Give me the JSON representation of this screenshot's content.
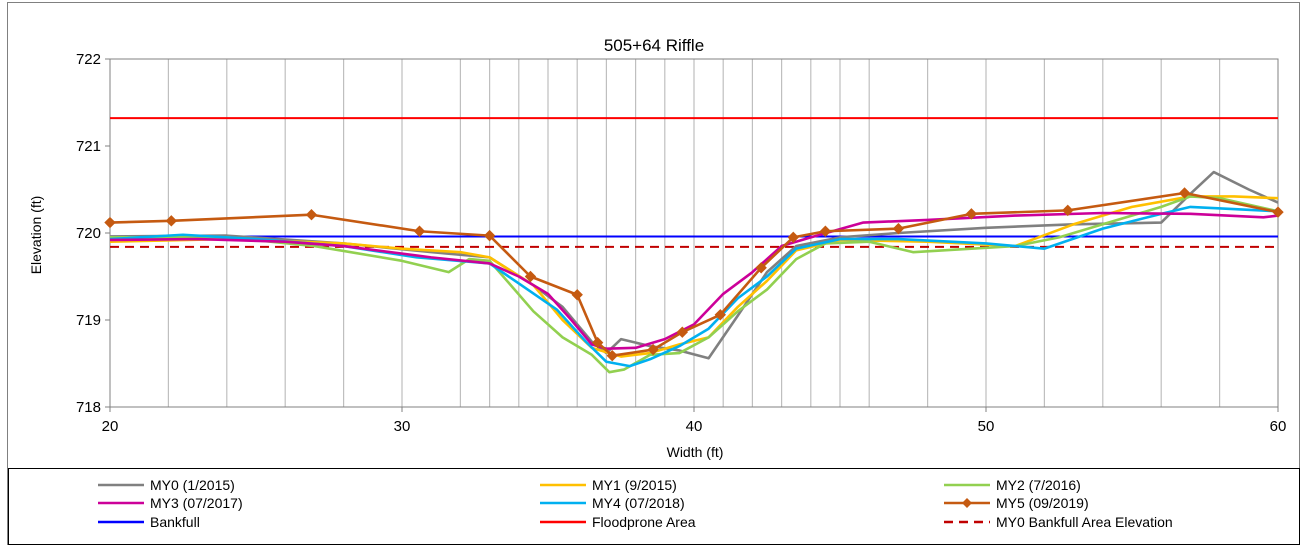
{
  "chart_data": {
    "type": "line",
    "title": "505+64 Riffle",
    "xlabel": "Width (ft)",
    "ylabel": "Elevation (ft)",
    "xlim": [
      20,
      60
    ],
    "ylim": [
      718,
      722
    ],
    "x_ticks": [
      20,
      30,
      40,
      50,
      60
    ],
    "y_ticks": [
      718,
      719,
      720,
      721,
      722
    ],
    "grid": "vertical lines at survey stations",
    "legend_position": "bottom",
    "series": [
      {
        "name": "MY0 (1/2015)",
        "color": "#808080",
        "marker": "none",
        "points": [
          [
            20,
            719.96
          ],
          [
            24,
            719.97
          ],
          [
            28,
            719.88
          ],
          [
            31,
            719.78
          ],
          [
            33,
            719.72
          ],
          [
            34.5,
            719.4
          ],
          [
            35.5,
            719.15
          ],
          [
            36.5,
            718.75
          ],
          [
            37,
            718.62
          ],
          [
            37.5,
            718.78
          ],
          [
            38.5,
            718.7
          ],
          [
            39.5,
            718.65
          ],
          [
            40.5,
            718.56
          ],
          [
            41.5,
            719.05
          ],
          [
            42.5,
            719.55
          ],
          [
            43.5,
            719.85
          ],
          [
            45,
            719.95
          ],
          [
            47,
            720.0
          ],
          [
            50,
            720.06
          ],
          [
            53,
            720.1
          ],
          [
            56,
            720.12
          ],
          [
            57,
            720.45
          ],
          [
            57.8,
            720.7
          ],
          [
            59,
            720.5
          ],
          [
            60,
            720.35
          ]
        ]
      },
      {
        "name": "MY1 (9/2015)",
        "color": "#FFC000",
        "marker": "none",
        "points": [
          [
            20,
            719.9
          ],
          [
            24,
            719.93
          ],
          [
            28,
            719.88
          ],
          [
            30,
            719.82
          ],
          [
            32,
            719.78
          ],
          [
            33,
            719.72
          ],
          [
            34.5,
            719.4
          ],
          [
            35.5,
            719.0
          ],
          [
            36.5,
            718.68
          ],
          [
            37.5,
            718.58
          ],
          [
            38.5,
            718.62
          ],
          [
            39.5,
            718.72
          ],
          [
            40.5,
            718.8
          ],
          [
            41.5,
            719.15
          ],
          [
            42.5,
            719.45
          ],
          [
            43.5,
            719.8
          ],
          [
            45,
            719.92
          ],
          [
            48,
            719.9
          ],
          [
            51,
            719.85
          ],
          [
            53,
            720.1
          ],
          [
            55,
            720.3
          ],
          [
            57,
            720.42
          ],
          [
            58.5,
            720.42
          ],
          [
            60,
            720.4
          ]
        ]
      },
      {
        "name": "MY2 (7/2016)",
        "color": "#92D050",
        "marker": "none",
        "points": [
          [
            20,
            719.95
          ],
          [
            24,
            719.95
          ],
          [
            27,
            719.85
          ],
          [
            30,
            719.68
          ],
          [
            31.6,
            719.55
          ],
          [
            32.3,
            719.7
          ],
          [
            33,
            719.68
          ],
          [
            34.5,
            719.1
          ],
          [
            35.5,
            718.8
          ],
          [
            36.5,
            718.6
          ],
          [
            37.1,
            718.4
          ],
          [
            37.6,
            718.43
          ],
          [
            38.5,
            718.6
          ],
          [
            39.5,
            718.62
          ],
          [
            40.5,
            718.8
          ],
          [
            41.5,
            719.1
          ],
          [
            42.5,
            719.35
          ],
          [
            43.5,
            719.7
          ],
          [
            44.5,
            719.88
          ],
          [
            46,
            719.9
          ],
          [
            47.5,
            719.78
          ],
          [
            49.5,
            719.82
          ],
          [
            51,
            719.85
          ],
          [
            52.5,
            719.95
          ],
          [
            54,
            720.1
          ],
          [
            56,
            720.3
          ],
          [
            57,
            720.42
          ],
          [
            58,
            720.4
          ],
          [
            60,
            720.25
          ]
        ]
      },
      {
        "name": "MY3 (07/2017)",
        "color": "#CC0099",
        "marker": "none",
        "points": [
          [
            20,
            719.92
          ],
          [
            23,
            719.93
          ],
          [
            26,
            719.9
          ],
          [
            28,
            719.85
          ],
          [
            31,
            719.72
          ],
          [
            33,
            719.65
          ],
          [
            34,
            719.5
          ],
          [
            35,
            719.3
          ],
          [
            35.8,
            719.0
          ],
          [
            36.5,
            718.72
          ],
          [
            37,
            718.67
          ],
          [
            38,
            718.68
          ],
          [
            39,
            718.78
          ],
          [
            40,
            718.95
          ],
          [
            41,
            719.3
          ],
          [
            42,
            719.55
          ],
          [
            43,
            719.85
          ],
          [
            44,
            719.95
          ],
          [
            45.8,
            720.12
          ],
          [
            48,
            720.15
          ],
          [
            51,
            720.2
          ],
          [
            54,
            720.23
          ],
          [
            57,
            720.22
          ],
          [
            59.5,
            720.18
          ],
          [
            60,
            720.2
          ]
        ]
      },
      {
        "name": "MY4 (07/2018)",
        "color": "#00B0F0",
        "marker": "none",
        "points": [
          [
            20,
            719.93
          ],
          [
            22.5,
            719.98
          ],
          [
            25,
            719.93
          ],
          [
            28,
            719.85
          ],
          [
            30.5,
            719.72
          ],
          [
            33,
            719.65
          ],
          [
            34,
            719.42
          ],
          [
            35.3,
            719.12
          ],
          [
            36.3,
            718.75
          ],
          [
            37,
            718.52
          ],
          [
            37.8,
            718.47
          ],
          [
            38.5,
            718.55
          ],
          [
            39.5,
            718.7
          ],
          [
            40.5,
            718.9
          ],
          [
            41.5,
            719.25
          ],
          [
            42.5,
            719.5
          ],
          [
            43.5,
            719.82
          ],
          [
            45,
            719.93
          ],
          [
            47,
            719.93
          ],
          [
            50,
            719.88
          ],
          [
            52,
            719.82
          ],
          [
            54,
            720.05
          ],
          [
            56,
            720.22
          ],
          [
            57,
            720.3
          ],
          [
            60,
            720.25
          ]
        ]
      },
      {
        "name": "MY5 (09/2019)",
        "color": "#C55A11",
        "marker": "diamond",
        "points": [
          [
            20,
            720.12
          ],
          [
            22.1,
            720.14
          ],
          [
            26.9,
            720.21
          ],
          [
            30.6,
            720.02
          ],
          [
            33,
            719.97
          ],
          [
            34.4,
            719.5
          ],
          [
            36,
            719.29
          ],
          [
            36.7,
            718.74
          ],
          [
            37.2,
            718.59
          ],
          [
            38.6,
            718.66
          ],
          [
            39.6,
            718.86
          ],
          [
            40.9,
            719.06
          ],
          [
            42.3,
            719.6
          ],
          [
            43.4,
            719.95
          ],
          [
            44.5,
            720.02
          ],
          [
            47,
            720.05
          ],
          [
            49.5,
            720.22
          ],
          [
            52.8,
            720.26
          ],
          [
            56.8,
            720.46
          ],
          [
            60,
            720.24
          ]
        ]
      },
      {
        "name": "Bankfull",
        "color": "#0000FF",
        "marker": "none",
        "style": "solid",
        "points": [
          [
            20,
            719.96
          ],
          [
            60,
            719.96
          ]
        ]
      },
      {
        "name": "Floodprone Area",
        "color": "#FF0000",
        "marker": "none",
        "style": "solid",
        "points": [
          [
            20,
            721.32
          ],
          [
            60,
            721.32
          ]
        ]
      },
      {
        "name": "MY0 Bankfull Area Elevation",
        "color": "#C00000",
        "marker": "none",
        "style": "dashed",
        "points": [
          [
            20,
            719.84
          ],
          [
            60,
            719.84
          ]
        ]
      }
    ],
    "gridlines_x": [
      22,
      24,
      26,
      28,
      30,
      32,
      33,
      34,
      35,
      36,
      37,
      38,
      39,
      40,
      41,
      42,
      43,
      44,
      45,
      46,
      48,
      50,
      52,
      54,
      56,
      58
    ]
  }
}
